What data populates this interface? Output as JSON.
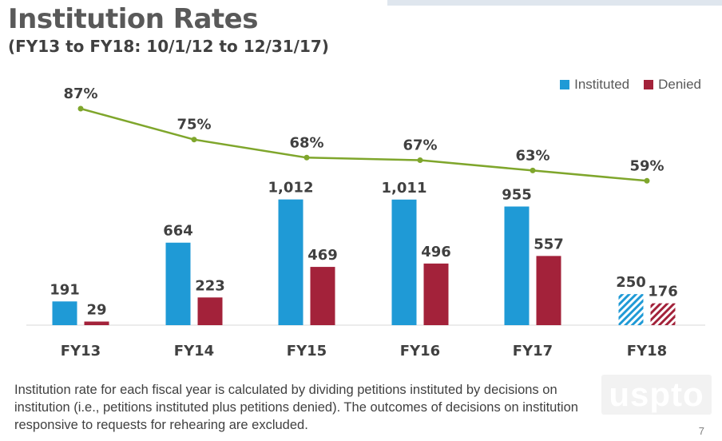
{
  "header": {
    "title": "Institution Rates",
    "subtitle": "(FY13 to FY18: 10/1/12 to 12/31/17)"
  },
  "legend": {
    "items": [
      {
        "label": "Instituted",
        "color": "#1f9ad6"
      },
      {
        "label": "Denied",
        "color": "#a3223a"
      }
    ]
  },
  "chart_data": {
    "type": "bar",
    "categories": [
      "FY13",
      "FY14",
      "FY15",
      "FY16",
      "FY17",
      "FY18"
    ],
    "series": [
      {
        "name": "Instituted",
        "values": [
          191,
          664,
          1012,
          1011,
          955,
          250
        ],
        "value_labels": [
          "191",
          "664",
          "1,012",
          "1,011",
          "955",
          "250"
        ],
        "color": "#1f9ad6"
      },
      {
        "name": "Denied",
        "values": [
          29,
          223,
          469,
          496,
          557,
          176
        ],
        "value_labels": [
          "29",
          "223",
          "469",
          "496",
          "557",
          "176"
        ],
        "color": "#a3223a"
      }
    ],
    "rate_line": {
      "values": [
        87,
        75,
        68,
        67,
        63,
        59
      ],
      "labels": [
        "87%",
        "75%",
        "68%",
        "67%",
        "63%",
        "59%"
      ],
      "color": "#7fa62c"
    },
    "hatched_categories": [
      "FY18"
    ],
    "legend_position": "top-right",
    "grid": false
  },
  "footnote": "Institution rate for each fiscal year is calculated by dividing petitions instituted by decisions on institution (i.e., petitions instituted plus petitions denied). The outcomes of decisions on institution responsive to requests for rehearing are excluded.",
  "logo_text": "uspto",
  "page_number": "7"
}
